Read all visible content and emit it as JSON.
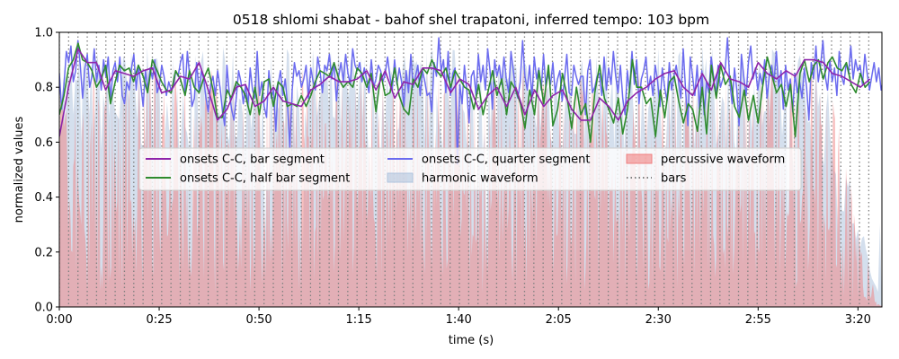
{
  "chart_data": {
    "type": "line",
    "title": "0518 shlomi shabat - bahof shel trapatoni, inferred tempo: 103 bpm",
    "xlabel": "time (s)",
    "ylabel": "normalized values",
    "xlim": [
      0,
      206
    ],
    "ylim": [
      0,
      1
    ],
    "x_ticks": [
      0,
      25,
      50,
      75,
      100,
      125,
      150,
      175,
      200
    ],
    "x_tick_labels": [
      "0:00",
      "0:25",
      "0:50",
      "1:15",
      "1:40",
      "2:05",
      "2:30",
      "2:55",
      "3:20"
    ],
    "y_ticks": [
      0.0,
      0.2,
      0.4,
      0.6,
      0.8,
      1.0
    ],
    "y_tick_labels": [
      "0.0",
      "0.2",
      "0.4",
      "0.6",
      "0.8",
      "1.0"
    ],
    "grid": false,
    "legend_position": "center",
    "bar_interval_s": 2.33,
    "bars_end_s": 203.5,
    "series": [
      {
        "name": "onsets C-C, bar segment",
        "color": "#8e24aa",
        "x": [
          0,
          2.3,
          4.7,
          7.0,
          9.3,
          11.6,
          14.0,
          16.3,
          18.6,
          21.0,
          23.3,
          25.6,
          28.0,
          30.3,
          32.6,
          35.0,
          37.3,
          39.6,
          42.0,
          44.3,
          46.6,
          49.0,
          51.3,
          53.6,
          56.0,
          58.3,
          60.6,
          63.0,
          65.3,
          67.6,
          70.0,
          72.3,
          74.6,
          77.0,
          79.3,
          81.6,
          84.0,
          86.3,
          88.6,
          91.0,
          93.3,
          95.6,
          98.0,
          100.3,
          102.6,
          105.0,
          107.3,
          109.6,
          112.0,
          114.3,
          116.6,
          119.0,
          121.3,
          123.6,
          126.0,
          128.3,
          130.6,
          133.0,
          135.3,
          137.6,
          140.0,
          142.3,
          144.6,
          147.0,
          149.3,
          151.6,
          154.0,
          156.3,
          158.6,
          161.0,
          163.3,
          165.6,
          168.0,
          170.3,
          172.6,
          175.0,
          177.3,
          179.6,
          182.0,
          184.3,
          186.6,
          189.0,
          191.3,
          193.6,
          196.0,
          198.3,
          200.6,
          203.0
        ],
        "values": [
          0.62,
          0.8,
          0.94,
          0.89,
          0.89,
          0.79,
          0.86,
          0.85,
          0.84,
          0.86,
          0.87,
          0.78,
          0.79,
          0.84,
          0.83,
          0.89,
          0.79,
          0.68,
          0.72,
          0.8,
          0.81,
          0.73,
          0.75,
          0.8,
          0.75,
          0.74,
          0.73,
          0.79,
          0.81,
          0.84,
          0.82,
          0.82,
          0.83,
          0.86,
          0.79,
          0.86,
          0.76,
          0.82,
          0.81,
          0.87,
          0.87,
          0.86,
          0.78,
          0.83,
          0.81,
          0.72,
          0.77,
          0.8,
          0.73,
          0.8,
          0.7,
          0.79,
          0.73,
          0.77,
          0.79,
          0.72,
          0.68,
          0.68,
          0.76,
          0.73,
          0.68,
          0.75,
          0.78,
          0.8,
          0.83,
          0.85,
          0.86,
          0.8,
          0.77,
          0.85,
          0.79,
          0.89,
          0.83,
          0.82,
          0.8,
          0.89,
          0.85,
          0.83,
          0.86,
          0.84,
          0.9,
          0.9,
          0.89,
          0.85,
          0.84,
          0.82,
          0.8,
          0.83
        ]
      },
      {
        "name": "onsets C-C, half bar segment",
        "color": "#2e8b2e",
        "x": [
          0,
          1.17,
          2.3,
          3.5,
          4.7,
          5.8,
          7.0,
          8.2,
          9.3,
          10.5,
          11.6,
          12.8,
          14.0,
          15.1,
          16.3,
          17.5,
          18.6,
          19.8,
          21.0,
          22.1,
          23.3,
          24.5,
          25.6,
          26.8,
          28.0,
          29.1,
          30.3,
          31.5,
          32.6,
          33.8,
          35.0,
          36.1,
          37.3,
          38.5,
          39.6,
          40.8,
          42.0,
          43.1,
          44.3,
          45.5,
          46.6,
          47.8,
          49.0,
          50.1,
          51.3,
          52.5,
          53.6,
          54.8,
          56.0,
          57.1,
          58.3,
          59.5,
          60.6,
          61.8,
          63.0,
          64.1,
          65.3,
          66.5,
          67.6,
          68.8,
          70.0,
          71.1,
          72.3,
          73.5,
          74.6,
          75.8,
          77.0,
          78.1,
          79.3,
          80.5,
          81.6,
          82.8,
          84.0,
          85.1,
          86.3,
          87.5,
          88.6,
          89.8,
          91.0,
          92.1,
          93.3,
          94.5,
          95.6,
          96.8,
          98.0,
          99.1,
          100.3,
          101.5,
          102.6,
          103.8,
          105.0,
          106.1,
          107.3,
          108.5,
          109.6,
          110.8,
          112.0,
          113.1,
          114.3,
          115.5,
          116.6,
          117.8,
          119.0,
          120.1,
          121.3,
          122.5,
          123.6,
          124.8,
          126.0,
          127.1,
          128.3,
          129.5,
          130.6,
          131.8,
          133.0,
          134.1,
          135.3,
          136.5,
          137.6,
          138.8,
          140.0,
          141.1,
          142.3,
          143.5,
          144.6,
          145.8,
          147.0,
          148.1,
          149.3,
          150.5,
          151.6,
          152.8,
          154.0,
          155.1,
          156.3,
          157.5,
          158.6,
          159.8,
          161.0,
          162.1,
          163.3,
          164.5,
          165.6,
          166.8,
          168.0,
          169.1,
          170.3,
          171.5,
          172.6,
          173.8,
          175.0,
          176.1,
          177.3,
          178.5,
          179.6,
          180.8,
          182.0,
          183.1,
          184.3,
          185.5,
          186.6,
          187.8,
          189.0,
          190.1,
          191.3,
          192.5,
          193.6,
          194.8,
          196.0,
          197.1,
          198.3,
          199.5,
          200.6,
          201.8,
          203.0
        ],
        "values": [
          0.7,
          0.77,
          0.87,
          0.9,
          0.96,
          0.9,
          0.89,
          0.86,
          0.8,
          0.83,
          0.88,
          0.74,
          0.82,
          0.88,
          0.86,
          0.87,
          0.82,
          0.88,
          0.84,
          0.78,
          0.9,
          0.86,
          0.82,
          0.79,
          0.78,
          0.86,
          0.83,
          0.77,
          0.86,
          0.8,
          0.78,
          0.83,
          0.87,
          0.79,
          0.69,
          0.69,
          0.79,
          0.76,
          0.82,
          0.8,
          0.77,
          0.7,
          0.8,
          0.7,
          0.82,
          0.83,
          0.73,
          0.82,
          0.8,
          0.73,
          0.74,
          0.73,
          0.77,
          0.73,
          0.77,
          0.82,
          0.86,
          0.85,
          0.84,
          0.89,
          0.83,
          0.8,
          0.82,
          0.8,
          0.87,
          0.85,
          0.8,
          0.85,
          0.71,
          0.85,
          0.77,
          0.78,
          0.87,
          0.77,
          0.72,
          0.7,
          0.83,
          0.8,
          0.87,
          0.85,
          0.9,
          0.86,
          0.84,
          0.87,
          0.8,
          0.86,
          0.83,
          0.8,
          0.79,
          0.72,
          0.81,
          0.7,
          0.78,
          0.86,
          0.77,
          0.83,
          0.7,
          0.82,
          0.79,
          0.74,
          0.65,
          0.79,
          0.7,
          0.86,
          0.74,
          0.88,
          0.66,
          0.72,
          0.85,
          0.77,
          0.65,
          0.8,
          0.7,
          0.74,
          0.6,
          0.78,
          0.88,
          0.76,
          0.72,
          0.67,
          0.76,
          0.63,
          0.72,
          0.9,
          0.8,
          0.8,
          0.74,
          0.76,
          0.62,
          0.79,
          0.69,
          0.82,
          0.84,
          0.75,
          0.67,
          0.74,
          0.72,
          0.64,
          0.8,
          0.63,
          0.88,
          0.76,
          0.88,
          0.81,
          0.84,
          0.73,
          0.69,
          0.79,
          0.68,
          0.77,
          0.67,
          0.8,
          0.91,
          0.84,
          0.78,
          0.81,
          0.73,
          0.81,
          0.62,
          0.85,
          0.9,
          0.82,
          0.88,
          0.9,
          0.83,
          0.89,
          0.91,
          0.87,
          0.86,
          0.89,
          0.81,
          0.78,
          0.85,
          0.8,
          0.82
        ]
      },
      {
        "name": "onsets C-C, quarter segment",
        "color": "#6b6bef",
        "x_step": 0.583,
        "values": [
          0.85,
          0.72,
          0.81,
          0.93,
          0.89,
          0.95,
          0.82,
          0.86,
          0.97,
          0.88,
          0.76,
          0.87,
          0.92,
          0.8,
          0.84,
          0.94,
          0.82,
          0.88,
          0.79,
          0.9,
          0.84,
          0.91,
          0.75,
          0.86,
          0.89,
          0.82,
          0.91,
          0.77,
          0.74,
          0.82,
          0.79,
          0.87,
          0.92,
          0.79,
          0.88,
          0.81,
          0.73,
          0.86,
          0.79,
          0.87,
          0.83,
          0.9,
          0.78,
          0.81,
          0.88,
          0.84,
          0.77,
          0.82,
          0.79,
          0.8,
          0.86,
          0.84,
          0.89,
          0.92,
          0.78,
          0.93,
          0.84,
          0.73,
          0.76,
          0.89,
          0.78,
          0.86,
          0.83,
          0.76,
          0.71,
          0.81,
          0.84,
          0.77,
          0.86,
          0.8,
          0.72,
          0.66,
          0.88,
          0.78,
          0.72,
          0.68,
          0.76,
          0.86,
          0.82,
          0.74,
          0.81,
          0.73,
          0.87,
          0.79,
          0.76,
          0.93,
          0.77,
          0.82,
          0.73,
          0.69,
          0.86,
          0.76,
          0.79,
          0.64,
          0.81,
          0.86,
          0.77,
          0.83,
          0.74,
          0.58,
          0.79,
          0.89,
          0.84,
          0.86,
          0.8,
          0.83,
          0.88,
          0.76,
          0.87,
          0.82,
          0.79,
          0.91,
          0.86,
          0.78,
          0.88,
          0.86,
          0.92,
          0.83,
          0.89,
          0.75,
          0.84,
          0.89,
          0.82,
          0.92,
          0.85,
          0.81,
          0.94,
          0.88,
          0.86,
          0.89,
          0.82,
          0.87,
          0.83,
          0.78,
          0.9,
          0.8,
          0.83,
          0.88,
          0.86,
          0.82,
          0.85,
          0.91,
          0.84,
          0.79,
          0.9,
          0.81,
          0.87,
          0.82,
          0.73,
          0.86,
          0.78,
          0.92,
          0.8,
          0.84,
          0.88,
          0.77,
          0.86,
          0.82,
          0.77,
          0.78,
          0.71,
          0.89,
          0.84,
          0.98,
          0.86,
          0.9,
          0.78,
          0.93,
          0.77,
          0.85,
          0.87,
          0.52,
          0.81,
          0.74,
          0.88,
          0.79,
          0.67,
          0.84,
          0.86,
          0.77,
          0.92,
          0.82,
          0.88,
          0.79,
          0.94,
          0.86,
          0.72,
          0.9,
          0.84,
          0.88,
          0.81,
          0.91,
          0.83,
          0.78,
          0.93,
          0.86,
          0.79,
          0.76,
          0.82,
          0.97,
          0.84,
          0.79,
          0.88,
          0.76,
          0.91,
          0.83,
          0.87,
          0.79,
          0.92,
          0.8,
          0.85,
          0.81,
          0.89,
          0.78,
          0.83,
          0.86,
          0.75,
          0.83,
          0.92,
          0.78,
          0.77,
          0.88,
          0.84,
          0.81,
          0.84,
          0.84,
          0.7,
          0.86,
          0.9,
          0.78,
          0.8,
          0.84,
          0.85,
          0.77,
          0.91,
          0.79,
          0.87,
          0.81,
          0.93,
          0.84,
          0.78,
          0.88,
          0.76,
          0.7,
          0.86,
          0.78,
          0.93,
          0.81,
          0.9,
          0.74,
          0.83,
          0.86,
          0.91,
          0.79,
          0.84,
          0.77,
          0.88,
          0.82,
          0.73,
          0.87,
          0.8,
          0.75,
          0.89,
          0.79,
          0.84,
          0.88,
          0.82,
          0.76,
          0.94,
          0.79,
          0.66,
          0.91,
          0.84,
          0.77,
          0.88,
          0.72,
          0.86,
          0.7,
          0.82,
          0.78,
          0.91,
          0.84,
          0.77,
          0.88,
          0.8,
          0.83,
          0.86,
          0.98,
          0.82,
          0.74,
          0.87,
          0.79,
          0.66,
          0.92,
          0.84,
          0.77,
          0.89,
          0.95,
          0.83,
          0.87,
          0.79,
          0.85,
          0.81,
          0.9,
          0.76,
          0.84,
          0.88,
          0.82,
          0.93,
          0.8,
          0.86,
          0.72,
          0.88,
          0.79,
          0.83,
          0.71,
          0.85,
          0.78,
          0.82,
          0.76,
          0.87,
          0.8,
          0.68,
          0.89,
          0.83,
          0.95,
          0.82,
          0.88,
          0.97,
          0.84,
          0.79,
          0.9,
          0.82,
          0.87,
          0.77,
          0.93,
          0.84,
          0.81,
          0.89,
          0.85,
          0.95,
          0.83,
          0.9,
          0.86,
          0.88,
          0.81,
          0.92,
          0.85,
          0.79,
          0.84,
          0.89,
          0.82,
          0.87,
          0.79,
          0.83,
          0.88,
          0.8,
          0.91,
          0.82,
          0.85
        ]
      },
      {
        "name": "harmonic waveform",
        "color": "#b0c4de",
        "style": "filled envelope",
        "typical_range": [
          0.55,
          0.95
        ]
      },
      {
        "name": "percussive waveform",
        "color": "#f08080",
        "style": "filled envelope",
        "typical_range": [
          0.0,
          0.9
        ]
      },
      {
        "name": "bars",
        "color": "#808080",
        "style": "dotted vertical lines"
      }
    ],
    "legend": {
      "items": [
        {
          "label": "onsets C-C, bar segment",
          "kind": "line",
          "color": "#8e24aa"
        },
        {
          "label": "onsets C-C, half bar segment",
          "kind": "line",
          "color": "#2e8b2e"
        },
        {
          "label": "onsets C-C, quarter segment",
          "kind": "line",
          "color": "#6b6bef"
        },
        {
          "label": "harmonic waveform",
          "kind": "patch",
          "color": "#b0c4de"
        },
        {
          "label": "percussive waveform",
          "kind": "patch",
          "color": "#f08080"
        },
        {
          "label": "bars",
          "kind": "dotted",
          "color": "#808080"
        }
      ]
    }
  }
}
